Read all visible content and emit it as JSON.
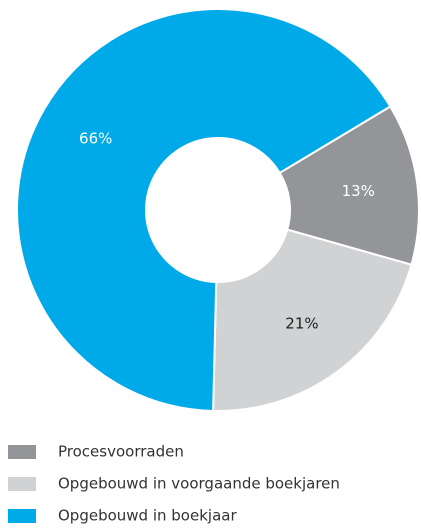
{
  "chart_data": {
    "type": "donut",
    "categories": [
      "Procesvoorraden",
      "Opgebouwd in voorgaande boekjaren",
      "Opgebouwd in boekjaar"
    ],
    "values": [
      13,
      21,
      66
    ],
    "value_labels": [
      "13%",
      "21%",
      "66%"
    ],
    "colors": [
      "#939598",
      "#d1d2d4",
      "#00a9e8"
    ],
    "legend": "bottom"
  }
}
